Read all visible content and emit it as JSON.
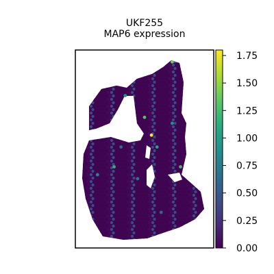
{
  "chart_data": {
    "type": "scatter",
    "title_line1": "UKF255",
    "title_line2": "MAP6 expression",
    "xlabel": "",
    "ylabel": "",
    "colorbar": {
      "colormap": "viridis",
      "range": [
        0,
        1.8
      ],
      "ticks": [
        0.0,
        0.25,
        0.5,
        0.75,
        1.0,
        1.25,
        1.5,
        1.75
      ],
      "tick_labels": [
        "0.00",
        "0.25",
        "0.50",
        "0.75",
        "1.00",
        "1.25",
        "1.50",
        "1.75"
      ]
    },
    "spot_color_scale": [
      "#440154",
      "#3b528b",
      "#21918c",
      "#5ec962",
      "#fde725"
    ],
    "highlighted_spots": [
      {
        "x": 0.36,
        "y": 0.77,
        "value": 0.9
      },
      {
        "x": 0.7,
        "y": 0.94,
        "value": 1.4
      },
      {
        "x": 0.55,
        "y": 0.57,
        "value": 1.8
      },
      {
        "x": 0.5,
        "y": 0.66,
        "value": 1.3
      },
      {
        "x": 0.28,
        "y": 0.41,
        "value": 1.1
      },
      {
        "x": 0.76,
        "y": 0.41,
        "value": 1.2
      },
      {
        "x": 0.16,
        "y": 0.37,
        "value": 0.8
      },
      {
        "x": 0.59,
        "y": 0.51,
        "value": 1.0
      },
      {
        "x": 0.45,
        "y": 0.35,
        "value": 0.7
      },
      {
        "x": 0.62,
        "y": 0.18,
        "value": 0.6
      },
      {
        "x": 0.7,
        "y": 0.63,
        "value": 0.9
      },
      {
        "x": 0.33,
        "y": 0.51,
        "value": 0.6
      }
    ]
  }
}
